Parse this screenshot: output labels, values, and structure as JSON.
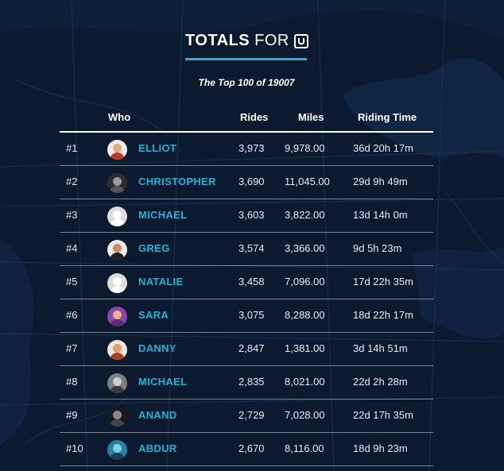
{
  "header": {
    "title_bold": "TOTALS",
    "title_rest": "FOR",
    "brand_icon": "uber-logo-icon",
    "subtitle": "The Top 100 of 19007"
  },
  "colors": {
    "background": "#0b1a2e",
    "accent": "#1fb6d9",
    "name_link": "#23b1d8"
  },
  "table": {
    "columns": [
      "",
      "Who",
      "Rides",
      "Miles",
      "Riding Time"
    ],
    "rows": [
      {
        "rank": "#1",
        "name": "ELLIOT",
        "rides": "3,973",
        "miles": "9,978.00",
        "time": "36d 20h 17m",
        "avatar": {
          "bg": "#f3ede6",
          "skin": "#e0a985",
          "shirt": "#c0392b"
        }
      },
      {
        "rank": "#2",
        "name": "CHRISTOPHER",
        "rides": "3,690",
        "miles": "11,045.00",
        "time": "29d 9h 49m",
        "avatar": {
          "bg": "#2c2c2c",
          "skin": "#9a9a9a",
          "shirt": "#555555"
        }
      },
      {
        "rank": "#3",
        "name": "MICHAEL",
        "rides": "3,603",
        "miles": "3,822.00",
        "time": "13d 14h 0m",
        "avatar": {
          "bg": "#dcdcdc",
          "skin": "#ffffff",
          "shirt": "#ffffff"
        }
      },
      {
        "rank": "#4",
        "name": "GREG",
        "rides": "3,574",
        "miles": "3,366.00",
        "time": "9d 5h 23m",
        "avatar": {
          "bg": "#eaeaea",
          "skin": "#c68e63",
          "shirt": "#1e1e1e"
        }
      },
      {
        "rank": "#5",
        "name": "NATALIE",
        "rides": "3,458",
        "miles": "7,096.00",
        "time": "17d 22h 35m",
        "avatar": {
          "bg": "#dcdcdc",
          "skin": "#ffffff",
          "shirt": "#ffffff"
        }
      },
      {
        "rank": "#6",
        "name": "SARA",
        "rides": "3,075",
        "miles": "8,288.00",
        "time": "18d 22h 17m",
        "avatar": {
          "bg": "#8e44ad",
          "skin": "#e8b48f",
          "shirt": "#5a2d6e"
        }
      },
      {
        "rank": "#7",
        "name": "DANNY",
        "rides": "2,847",
        "miles": "1,381.00",
        "time": "3d 14h 51m",
        "avatar": {
          "bg": "#f1e6da",
          "skin": "#d9a072",
          "shirt": "#b03a2e"
        }
      },
      {
        "rank": "#8",
        "name": "MICHAEL",
        "rides": "2,835",
        "miles": "8,021.00",
        "time": "22d 2h 28m",
        "avatar": {
          "bg": "#7f7f7f",
          "skin": "#cfcfcf",
          "shirt": "#3a3a3a"
        }
      },
      {
        "rank": "#9",
        "name": "ANAND",
        "rides": "2,729",
        "miles": "7,028.00",
        "time": "22d 17h 35m",
        "avatar": {
          "bg": "#1a1a1a",
          "skin": "#8a8a8a",
          "shirt": "#444444"
        }
      },
      {
        "rank": "#10",
        "name": "ABDUR",
        "rides": "2,670",
        "miles": "8,116.00",
        "time": "18d 9h 23m",
        "avatar": {
          "bg": "#2a7f9e",
          "skin": "#7fd0e6",
          "shirt": "#1a3d4f"
        }
      }
    ]
  }
}
